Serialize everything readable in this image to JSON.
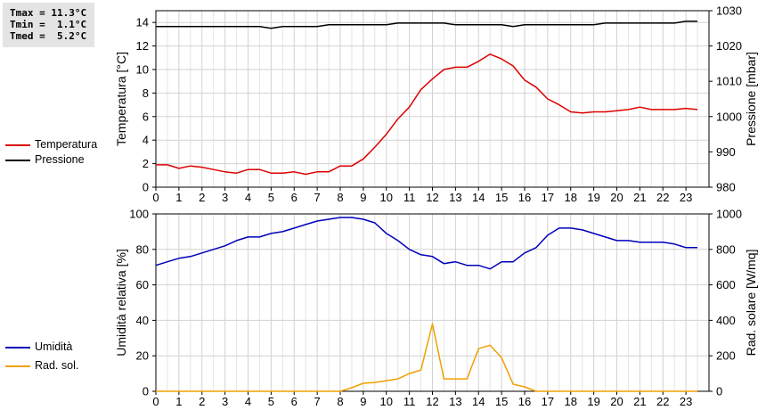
{
  "stats": {
    "tmax": "Tmax = 11.3°C",
    "tmin": "Tmin =  1.1°C",
    "tmed": "Tmed =  5.2°C"
  },
  "legend_top": [
    {
      "label": "Temperatura",
      "color": "#dd0000"
    },
    {
      "label": "Pressione",
      "color": "#000000"
    }
  ],
  "legend_bottom": [
    {
      "label": "Umidità",
      "color": "#0000bb"
    },
    {
      "label": "Rad. sol.",
      "color": "#f0a000"
    }
  ],
  "chart_data": [
    {
      "type": "line",
      "ylabel": "Temperatura [°C]",
      "y2label": "Pressione [mbar]",
      "xlim": [
        0,
        24
      ],
      "xticks": [
        0,
        1,
        2,
        3,
        4,
        5,
        6,
        7,
        8,
        9,
        10,
        11,
        12,
        13,
        14,
        15,
        16,
        17,
        18,
        19,
        20,
        21,
        22,
        23
      ],
      "ylim": [
        0,
        15
      ],
      "yticks": [
        0,
        2,
        4,
        6,
        8,
        10,
        12,
        14
      ],
      "y2lim": [
        980,
        1030
      ],
      "y2ticks": [
        980,
        990,
        1000,
        1010,
        1020,
        1030
      ],
      "grid": true,
      "series": [
        {
          "name": "Temperatura",
          "axis": "left",
          "color": "#dd0000",
          "x": [
            0,
            0.5,
            1,
            1.5,
            2,
            2.5,
            3,
            3.5,
            4,
            4.5,
            5,
            5.5,
            6,
            6.5,
            7,
            7.5,
            8,
            8.5,
            9,
            9.5,
            10,
            10.5,
            11,
            11.5,
            12,
            12.5,
            13,
            13.5,
            14,
            14.5,
            15,
            15.5,
            16,
            16.5,
            17,
            17.5,
            18,
            18.5,
            19,
            19.5,
            20,
            20.5,
            21,
            21.5,
            22,
            22.5,
            23,
            23.5
          ],
          "y": [
            1.9,
            1.9,
            1.6,
            1.8,
            1.7,
            1.5,
            1.3,
            1.2,
            1.5,
            1.5,
            1.2,
            1.2,
            1.3,
            1.1,
            1.3,
            1.3,
            1.8,
            1.8,
            2.4,
            3.4,
            4.5,
            5.8,
            6.8,
            8.3,
            9.2,
            10.0,
            10.2,
            10.2,
            10.7,
            11.3,
            10.9,
            10.3,
            9.1,
            8.5,
            7.5,
            7.0,
            6.4,
            6.3,
            6.4,
            6.4,
            6.5,
            6.6,
            6.8,
            6.6,
            6.6,
            6.6,
            6.7,
            6.6
          ]
        },
        {
          "name": "Pressione",
          "axis": "right",
          "color": "#000000",
          "x": [
            0,
            0.5,
            1,
            1.5,
            2,
            2.5,
            3,
            3.5,
            4,
            4.5,
            5,
            5.5,
            6,
            6.5,
            7,
            7.5,
            8,
            8.5,
            9,
            9.5,
            10,
            10.5,
            11,
            11.5,
            12,
            12.5,
            13,
            13.5,
            14,
            14.5,
            15,
            15.5,
            16,
            16.5,
            17,
            17.5,
            18,
            18.5,
            19,
            19.5,
            20,
            20.5,
            21,
            21.5,
            22,
            22.5,
            23,
            23.5
          ],
          "y": [
            1025.5,
            1025.5,
            1025.5,
            1025.5,
            1025.5,
            1025.5,
            1025.5,
            1025.5,
            1025.5,
            1025.5,
            1025,
            1025.5,
            1025.5,
            1025.5,
            1025.5,
            1026,
            1026,
            1026,
            1026,
            1026,
            1026,
            1026.5,
            1026.5,
            1026.5,
            1026.5,
            1026.5,
            1026,
            1026,
            1026,
            1026,
            1026,
            1025.5,
            1026,
            1026,
            1026,
            1026,
            1026,
            1026,
            1026,
            1026.5,
            1026.5,
            1026.5,
            1026.5,
            1026.5,
            1026.5,
            1026.5,
            1027,
            1027
          ]
        }
      ]
    },
    {
      "type": "line",
      "ylabel": "Umidità relativa [%]",
      "y2label": "Rad. solare [W/mq]",
      "xlim": [
        0,
        24
      ],
      "xticks": [
        0,
        1,
        2,
        3,
        4,
        5,
        6,
        7,
        8,
        9,
        10,
        11,
        12,
        13,
        14,
        15,
        16,
        17,
        18,
        19,
        20,
        21,
        22,
        23
      ],
      "ylim": [
        0,
        100
      ],
      "yticks": [
        0,
        20,
        40,
        60,
        80,
        100
      ],
      "y2lim": [
        0,
        1000
      ],
      "y2ticks": [
        0,
        200,
        400,
        600,
        800,
        1000
      ],
      "grid": true,
      "series": [
        {
          "name": "Umidità",
          "axis": "left",
          "color": "#0000bb",
          "x": [
            0,
            0.5,
            1,
            1.5,
            2,
            2.5,
            3,
            3.5,
            4,
            4.5,
            5,
            5.5,
            6,
            6.5,
            7,
            7.5,
            8,
            8.5,
            9,
            9.5,
            10,
            10.5,
            11,
            11.5,
            12,
            12.5,
            13,
            13.5,
            14,
            14.5,
            15,
            15.5,
            16,
            16.5,
            17,
            17.5,
            18,
            18.5,
            19,
            19.5,
            20,
            20.5,
            21,
            21.5,
            22,
            22.5,
            23,
            23.5
          ],
          "y": [
            71,
            73,
            75,
            76,
            78,
            80,
            82,
            85,
            87,
            87,
            89,
            90,
            92,
            94,
            96,
            97,
            98,
            98,
            97,
            95,
            89,
            85,
            80,
            77,
            76,
            72,
            73,
            71,
            71,
            69,
            73,
            73,
            78,
            81,
            88,
            92,
            92,
            91,
            89,
            87,
            85,
            85,
            84,
            84,
            84,
            83,
            81,
            81
          ]
        },
        {
          "name": "Rad. sol.",
          "axis": "right",
          "color": "#f0a000",
          "x": [
            0,
            1,
            2,
            3,
            4,
            5,
            6,
            7,
            8,
            8.5,
            9,
            9.5,
            10,
            10.5,
            11,
            11.5,
            12,
            12.5,
            13,
            13.5,
            14,
            14.5,
            15,
            15.5,
            16,
            16.5,
            17,
            18,
            19,
            20,
            21,
            22,
            23,
            23.5
          ],
          "y": [
            0,
            0,
            0,
            0,
            0,
            0,
            0,
            0,
            0,
            20,
            45,
            50,
            60,
            70,
            100,
            120,
            380,
            70,
            70,
            70,
            240,
            260,
            190,
            40,
            25,
            0,
            0,
            0,
            0,
            0,
            0,
            0,
            0,
            0
          ]
        }
      ]
    }
  ]
}
